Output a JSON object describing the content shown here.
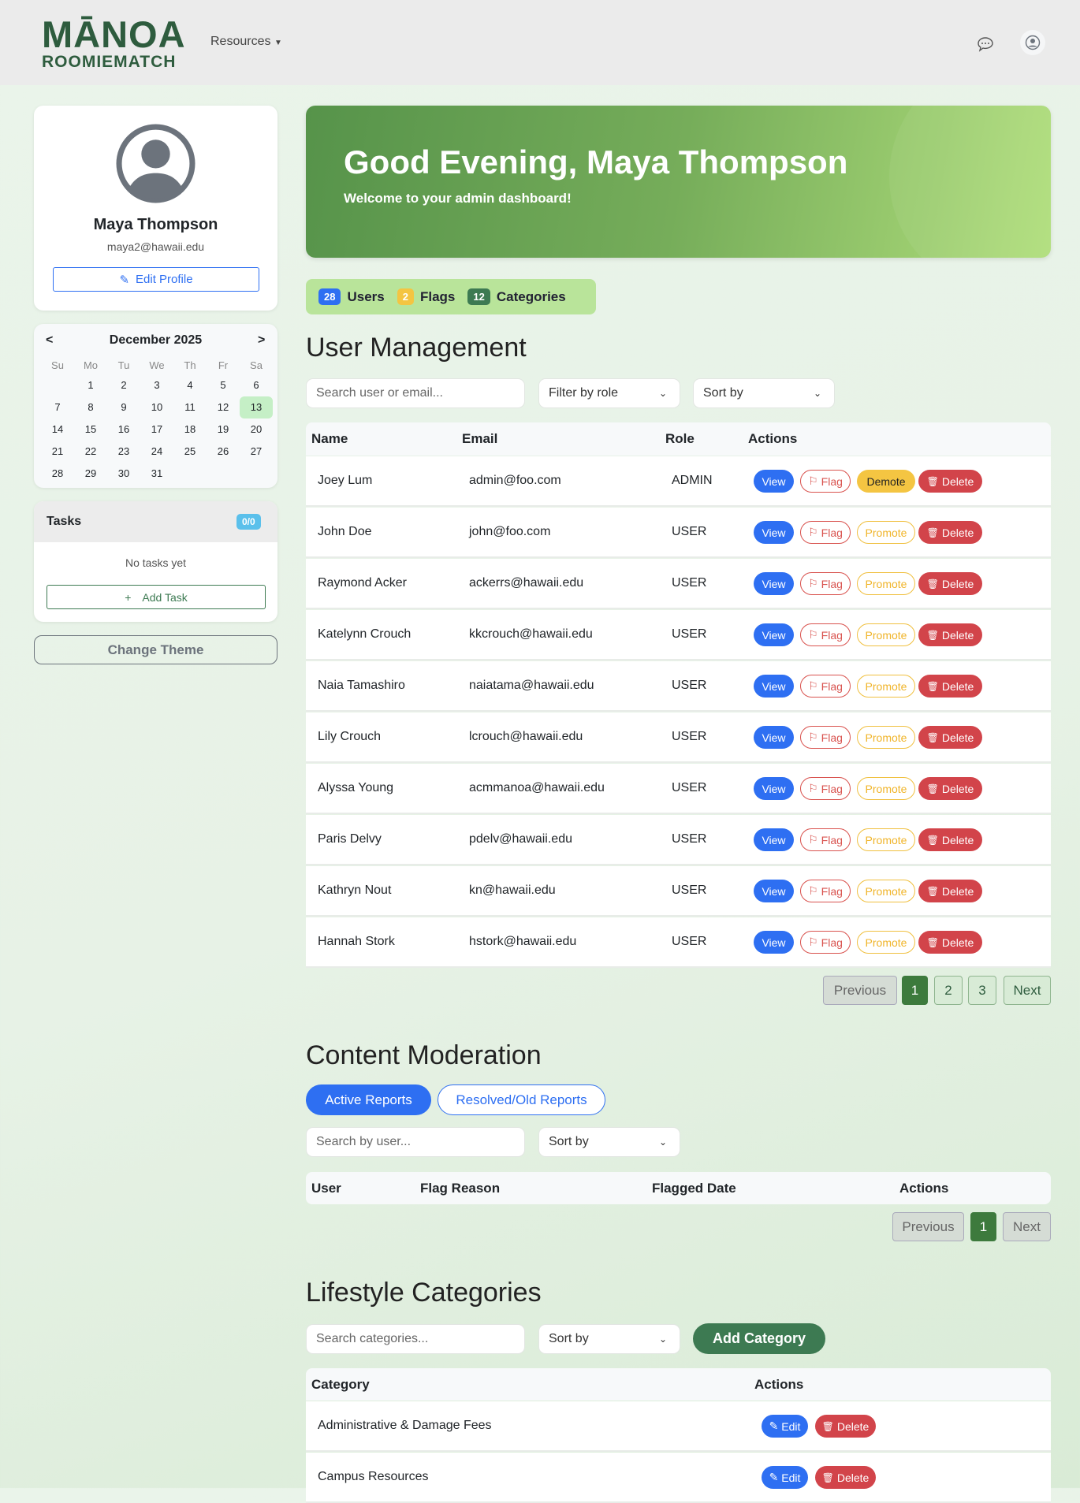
{
  "header": {
    "logo_top": "MĀNOA",
    "logo_bottom": "ROOMIEMATCH",
    "resources": "Resources",
    "chat_icon": "chat-bubble-icon",
    "user_icon": "user-circle-icon"
  },
  "profile": {
    "name": "Maya Thompson",
    "email": "maya2@hawaii.edu",
    "edit": "Edit Profile"
  },
  "calendar": {
    "month": "December 2025",
    "prev": "<",
    "next": ">",
    "days": [
      "Su",
      "Mo",
      "Tu",
      "We",
      "Th",
      "Fr",
      "Sa"
    ],
    "first_offset": 1,
    "num_days": 31,
    "today": 13
  },
  "tasks": {
    "title": "Tasks",
    "count": "0/0",
    "empty": "No tasks yet",
    "add": "Add Task"
  },
  "theme": "Change Theme",
  "banner": {
    "title": "Good Evening, Maya Thompson",
    "subtitle": "Welcome to your admin dashboard!"
  },
  "stats": [
    {
      "count": "28",
      "label": "Users",
      "color": "#2e6ff2"
    },
    {
      "count": "2",
      "label": "Flags",
      "color": "#f4c542"
    },
    {
      "count": "12",
      "label": "Categories",
      "color": "#3d7a52"
    }
  ],
  "users": {
    "title": "User Management",
    "search": "Search user or email...",
    "filter": "Filter by role",
    "sort": "Sort by",
    "columns": [
      "Name",
      "Email",
      "Role",
      "Actions"
    ],
    "actions": {
      "view": "View",
      "flag": "Flag",
      "promote": "Promote",
      "demote": "Demote",
      "delete": "Delete"
    },
    "rows": [
      {
        "name": "Joey Lum",
        "email": "admin@foo.com",
        "role": "ADMIN"
      },
      {
        "name": "John Doe",
        "email": "john@foo.com",
        "role": "USER"
      },
      {
        "name": "Raymond Acker",
        "email": "ackerrs@hawaii.edu",
        "role": "USER"
      },
      {
        "name": "Katelynn Crouch",
        "email": "kkcrouch@hawaii.edu",
        "role": "USER"
      },
      {
        "name": "Naia Tamashiro",
        "email": "naiatama@hawaii.edu",
        "role": "USER"
      },
      {
        "name": "Lily Crouch",
        "email": "lcrouch@hawaii.edu",
        "role": "USER"
      },
      {
        "name": "Alyssa Young",
        "email": "acmmanoa@hawaii.edu",
        "role": "USER"
      },
      {
        "name": "Paris Delvy",
        "email": "pdelv@hawaii.edu",
        "role": "USER"
      },
      {
        "name": "Kathryn Nout",
        "email": "kn@hawaii.edu",
        "role": "USER"
      },
      {
        "name": "Hannah Stork",
        "email": "hstork@hawaii.edu",
        "role": "USER"
      }
    ],
    "pagination": {
      "prev": "Previous",
      "pages": [
        "1",
        "2",
        "3"
      ],
      "current": "1",
      "next": "Next"
    }
  },
  "moderation": {
    "title": "Content Moderation",
    "tab_active": "Active Reports",
    "tab_resolved": "Resolved/Old Reports",
    "search": "Search by user...",
    "sort": "Sort by",
    "columns": [
      "User",
      "Flag Reason",
      "Flagged Date",
      "Actions"
    ],
    "pagination": {
      "prev": "Previous",
      "current": "1",
      "next": "Next"
    }
  },
  "categories": {
    "title": "Lifestyle Categories",
    "search": "Search categories...",
    "sort": "Sort by",
    "add": "Add Category",
    "columns": [
      "Category",
      "Actions"
    ],
    "actions": {
      "edit": "Edit",
      "delete": "Delete"
    },
    "rows": [
      "Administrative & Damage Fees",
      "Campus Resources"
    ]
  }
}
